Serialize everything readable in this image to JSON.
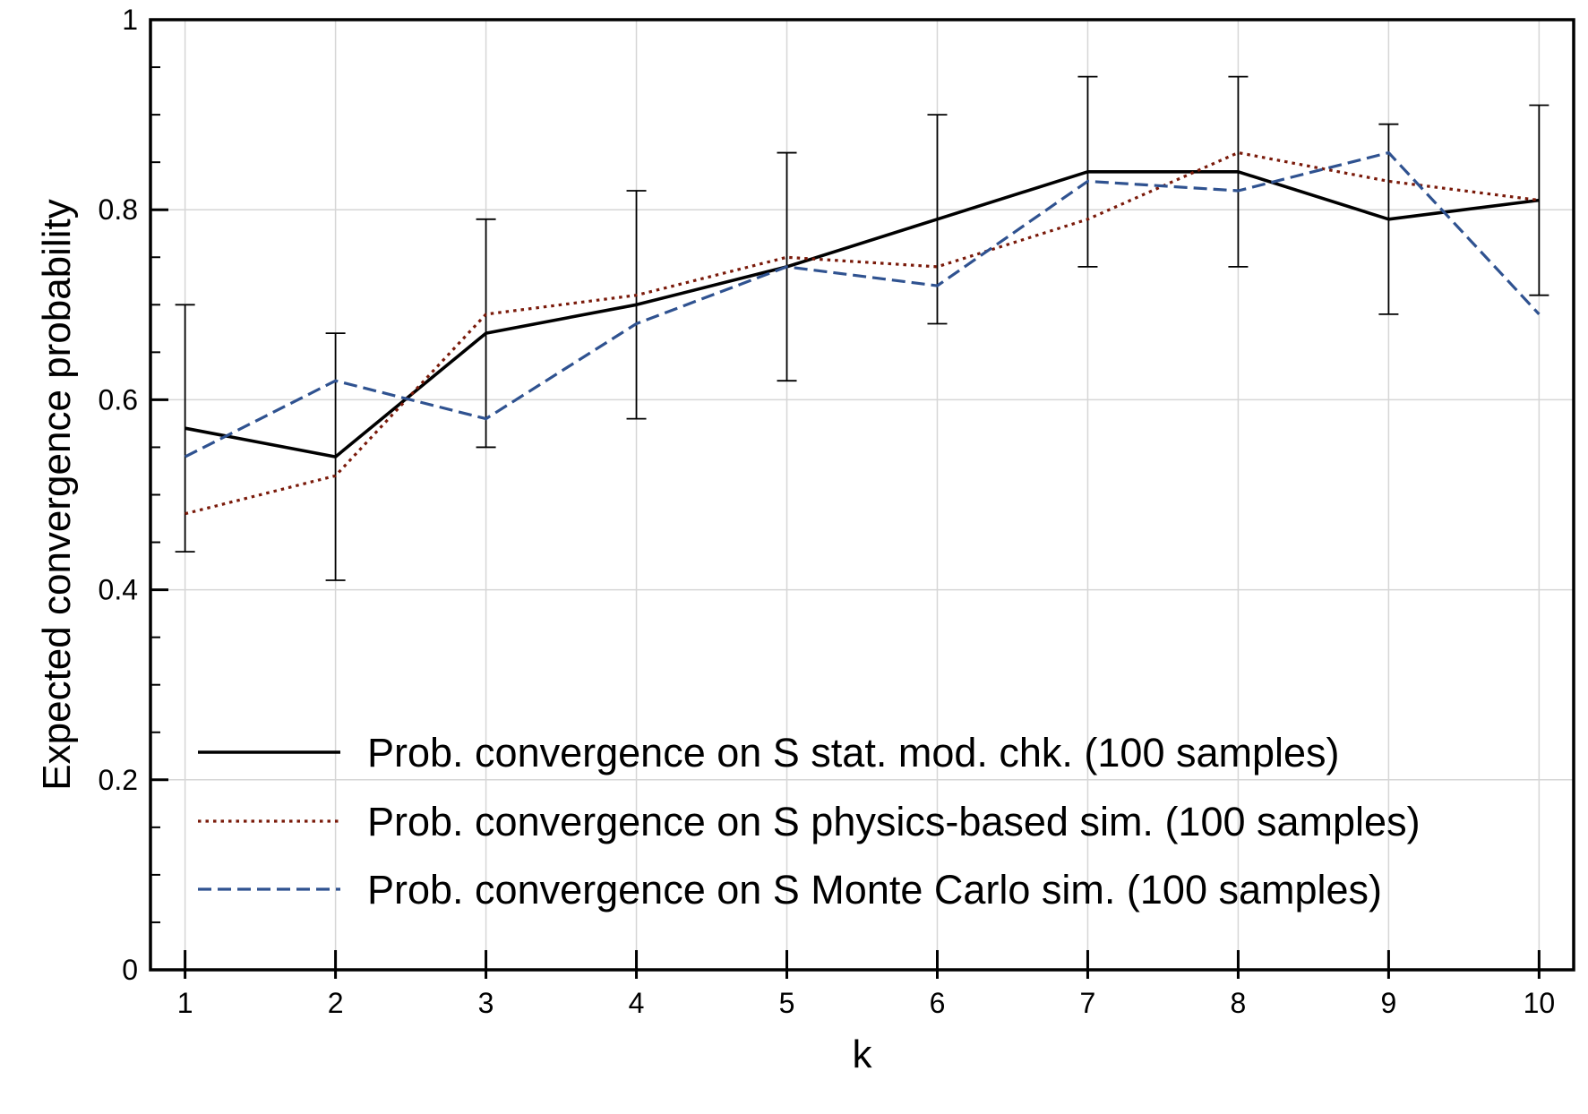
{
  "chart_data": {
    "type": "line",
    "title": "",
    "xlabel": "k",
    "ylabel": "Expected convergence probability",
    "x": [
      1,
      2,
      3,
      4,
      5,
      6,
      7,
      8,
      9,
      10
    ],
    "xlim": [
      0.77,
      10.23
    ],
    "ylim": [
      0,
      1
    ],
    "xticks": [
      "1",
      "2",
      "3",
      "4",
      "5",
      "6",
      "7",
      "8",
      "9",
      "10"
    ],
    "yticks": [
      {
        "value": 0,
        "label": "0"
      },
      {
        "value": 0.2,
        "label": "0.2"
      },
      {
        "value": 0.4,
        "label": "0.4"
      },
      {
        "value": 0.6,
        "label": "0.6"
      },
      {
        "value": 0.8,
        "label": "0.8"
      },
      {
        "value": 1,
        "label": "1"
      }
    ],
    "grid": true,
    "legend_position": "bottom-left",
    "series": [
      {
        "name": "Prob. convergence on S stat. mod. chk. (100 samples)",
        "style": "solid",
        "color": "#000000",
        "values": [
          0.57,
          0.54,
          0.67,
          0.7,
          0.74,
          0.79,
          0.84,
          0.84,
          0.79,
          0.81
        ],
        "error_low": [
          0.44,
          0.41,
          0.55,
          0.58,
          0.62,
          0.68,
          0.74,
          0.74,
          0.69,
          0.71
        ],
        "error_high": [
          0.7,
          0.67,
          0.79,
          0.82,
          0.86,
          0.9,
          0.94,
          0.94,
          0.89,
          0.91
        ]
      },
      {
        "name": "Prob. convergence on S physics-based sim. (100 samples)",
        "style": "dotted",
        "color": "#7a1a0a",
        "values": [
          0.48,
          0.52,
          0.69,
          0.71,
          0.75,
          0.74,
          0.79,
          0.86,
          0.83,
          0.81
        ]
      },
      {
        "name": "Prob. convergence on S Monte Carlo sim. (100 samples)",
        "style": "dashed",
        "color": "#2f5290",
        "values": [
          0.54,
          0.62,
          0.58,
          0.68,
          0.74,
          0.72,
          0.83,
          0.82,
          0.86,
          0.69
        ]
      }
    ]
  }
}
